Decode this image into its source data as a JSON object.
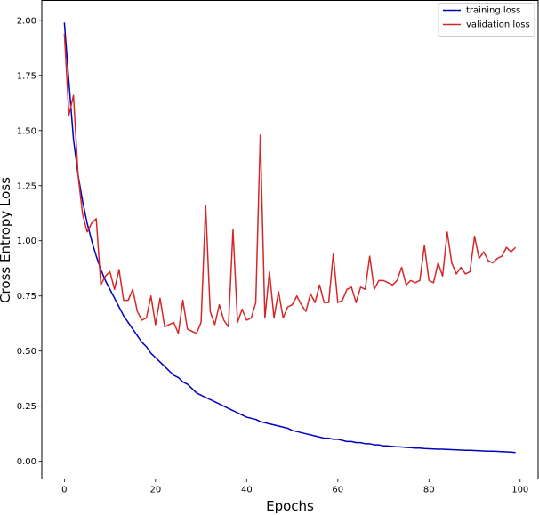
{
  "chart_data": {
    "type": "line",
    "title": "",
    "xlabel": "Epochs",
    "ylabel": "Cross Entropy Loss",
    "xlim": [
      -4.95,
      103.95
    ],
    "ylim": [
      -0.08,
      2.09
    ],
    "xticks": [
      0,
      20,
      40,
      60,
      80,
      100
    ],
    "xtick_labels": [
      "0",
      "20",
      "40",
      "60",
      "80",
      "100"
    ],
    "yticks": [
      0.0,
      0.25,
      0.5,
      0.75,
      1.0,
      1.25,
      1.5,
      1.75,
      2.0
    ],
    "ytick_labels": [
      "0.00",
      "0.25",
      "0.50",
      "0.75",
      "1.00",
      "1.25",
      "1.50",
      "1.75",
      "2.00"
    ],
    "grid": false,
    "legend_position": "top-right",
    "series": [
      {
        "name": "training loss",
        "color": "#0000bf",
        "x": [
          0,
          1,
          2,
          3,
          4,
          5,
          6,
          7,
          8,
          9,
          10,
          11,
          12,
          13,
          14,
          15,
          16,
          17,
          18,
          19,
          20,
          21,
          22,
          23,
          24,
          25,
          26,
          27,
          28,
          29,
          30,
          31,
          32,
          33,
          34,
          35,
          36,
          37,
          38,
          39,
          40,
          41,
          42,
          43,
          44,
          45,
          46,
          47,
          48,
          49,
          50,
          51,
          52,
          53,
          54,
          55,
          56,
          57,
          58,
          59,
          60,
          61,
          62,
          63,
          64,
          65,
          66,
          67,
          68,
          69,
          70,
          71,
          72,
          73,
          74,
          75,
          76,
          77,
          78,
          79,
          80,
          81,
          82,
          83,
          84,
          85,
          86,
          87,
          88,
          89,
          90,
          91,
          92,
          93,
          94,
          95,
          96,
          97,
          98,
          99
        ],
        "values": [
          1.99,
          1.72,
          1.46,
          1.3,
          1.18,
          1.08,
          1.0,
          0.93,
          0.87,
          0.82,
          0.78,
          0.74,
          0.7,
          0.66,
          0.63,
          0.6,
          0.57,
          0.54,
          0.52,
          0.49,
          0.47,
          0.45,
          0.43,
          0.41,
          0.39,
          0.38,
          0.36,
          0.35,
          0.33,
          0.31,
          0.3,
          0.29,
          0.28,
          0.27,
          0.26,
          0.25,
          0.24,
          0.23,
          0.22,
          0.21,
          0.2,
          0.195,
          0.19,
          0.18,
          0.175,
          0.17,
          0.165,
          0.16,
          0.155,
          0.15,
          0.14,
          0.135,
          0.13,
          0.125,
          0.12,
          0.115,
          0.11,
          0.105,
          0.105,
          0.1,
          0.1,
          0.095,
          0.09,
          0.09,
          0.085,
          0.085,
          0.08,
          0.08,
          0.075,
          0.075,
          0.07,
          0.07,
          0.068,
          0.066,
          0.065,
          0.063,
          0.062,
          0.06,
          0.06,
          0.058,
          0.057,
          0.056,
          0.055,
          0.055,
          0.054,
          0.053,
          0.052,
          0.051,
          0.05,
          0.05,
          0.049,
          0.048,
          0.047,
          0.046,
          0.046,
          0.045,
          0.044,
          0.043,
          0.042,
          0.04
        ]
      },
      {
        "name": "validation loss",
        "color": "#d62728",
        "x": [
          0,
          1,
          2,
          3,
          4,
          5,
          6,
          7,
          8,
          9,
          10,
          11,
          12,
          13,
          14,
          15,
          16,
          17,
          18,
          19,
          20,
          21,
          22,
          23,
          24,
          25,
          26,
          27,
          28,
          29,
          30,
          31,
          32,
          33,
          34,
          35,
          36,
          37,
          38,
          39,
          40,
          41,
          42,
          43,
          44,
          45,
          46,
          47,
          48,
          49,
          50,
          51,
          52,
          53,
          54,
          55,
          56,
          57,
          58,
          59,
          60,
          61,
          62,
          63,
          64,
          65,
          66,
          67,
          68,
          69,
          70,
          71,
          72,
          73,
          74,
          75,
          76,
          77,
          78,
          79,
          80,
          81,
          82,
          83,
          84,
          85,
          86,
          87,
          88,
          89,
          90,
          91,
          92,
          93,
          94,
          95,
          96,
          97,
          98,
          99
        ],
        "values": [
          1.94,
          1.57,
          1.66,
          1.3,
          1.12,
          1.04,
          1.08,
          1.1,
          0.8,
          0.84,
          0.86,
          0.78,
          0.87,
          0.73,
          0.73,
          0.78,
          0.68,
          0.64,
          0.65,
          0.75,
          0.62,
          0.74,
          0.61,
          0.62,
          0.63,
          0.58,
          0.73,
          0.6,
          0.59,
          0.58,
          0.63,
          1.16,
          0.68,
          0.62,
          0.71,
          0.64,
          0.61,
          1.05,
          0.63,
          0.69,
          0.64,
          0.65,
          0.72,
          1.48,
          0.65,
          0.86,
          0.65,
          0.77,
          0.65,
          0.7,
          0.71,
          0.75,
          0.71,
          0.68,
          0.76,
          0.72,
          0.8,
          0.72,
          0.72,
          0.94,
          0.72,
          0.73,
          0.78,
          0.79,
          0.72,
          0.79,
          0.78,
          0.93,
          0.78,
          0.82,
          0.82,
          0.81,
          0.8,
          0.82,
          0.88,
          0.8,
          0.82,
          0.81,
          0.82,
          0.98,
          0.82,
          0.81,
          0.9,
          0.84,
          1.04,
          0.9,
          0.85,
          0.88,
          0.85,
          0.86,
          1.02,
          0.92,
          0.95,
          0.91,
          0.9,
          0.92,
          0.93,
          0.97,
          0.95,
          0.97
        ]
      }
    ]
  }
}
